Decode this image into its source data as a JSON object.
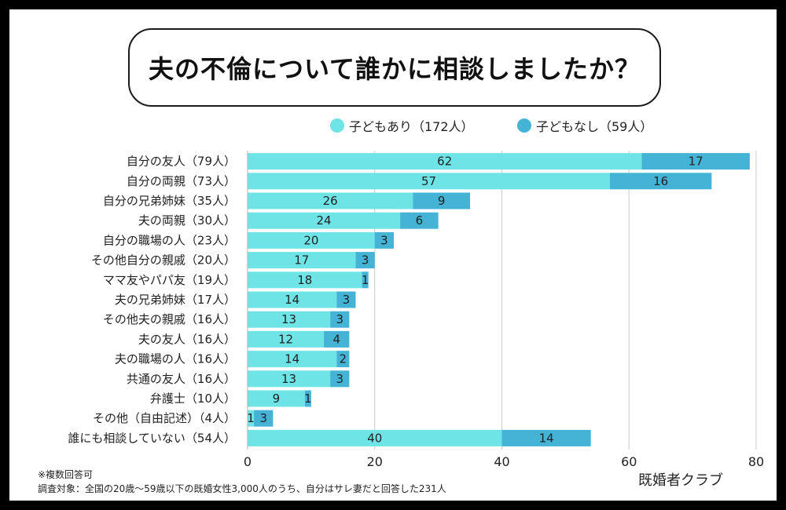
{
  "title": "夫の不倫について誰かに相談しましたか？",
  "colors": {
    "with_children": "#6ee4e6",
    "without_children": "#45b3d5",
    "grid": "#cccccc",
    "frame": "#000000"
  },
  "legend": [
    {
      "label": "子どもあり（172人）",
      "color": "#6ee4e6"
    },
    {
      "label": "子どもなし（59人）",
      "color": "#45b3d5"
    }
  ],
  "notes": {
    "multiple": "※複数回答可",
    "subject": "調査対象：全国の20歳〜59歳以下の既婚女性3,000人のうち、自分はサレ妻だと回答した231人"
  },
  "source": "既婚者クラブ",
  "chart_data": {
    "type": "bar",
    "orientation": "horizontal",
    "stacked": true,
    "title": "夫の不倫について誰かに相談しましたか？",
    "categories": [
      "自分の友人（79人）",
      "自分の両親（73人）",
      "自分の兄弟姉妹（35人）",
      "夫の両親（30人）",
      "自分の職場の人（23人）",
      "その他自分の親戚（20人）",
      "ママ友やパパ友（19人）",
      "夫の兄弟姉妹（17人）",
      "その他夫の親戚（16人）",
      "夫の友人（16人）",
      "夫の職場の人（16人）",
      "共通の友人（16人）",
      "弁護士（10人）",
      "その他（自由記述）（4人）",
      "誰にも相談していない（54人）"
    ],
    "series": [
      {
        "name": "子どもあり（172人）",
        "values": [
          62,
          57,
          26,
          24,
          20,
          17,
          18,
          14,
          13,
          12,
          14,
          13,
          9,
          1,
          40
        ]
      },
      {
        "name": "子どもなし（59人）",
        "values": [
          17,
          16,
          9,
          6,
          3,
          3,
          1,
          3,
          3,
          4,
          2,
          3,
          1,
          3,
          14
        ]
      }
    ],
    "xlim": [
      0,
      80
    ],
    "xticks": [
      0,
      20,
      40,
      60,
      80
    ],
    "grid": true,
    "legend_position": "top-right"
  }
}
